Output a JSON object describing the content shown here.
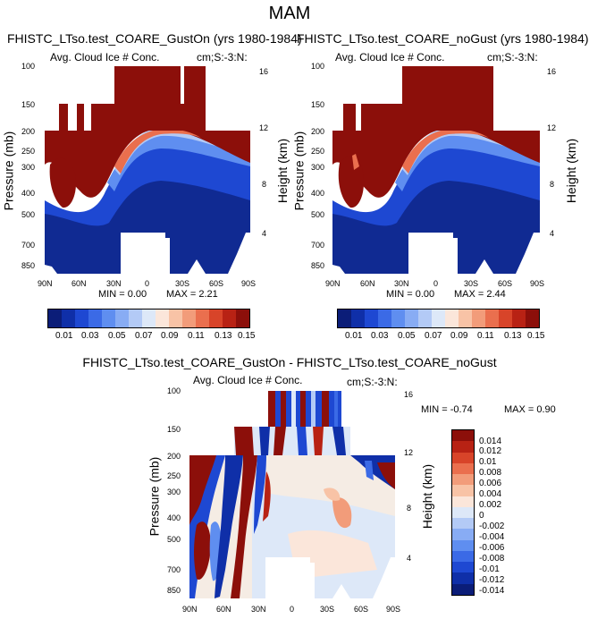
{
  "title": "MAM",
  "colors": {
    "abs_scale": [
      "#0b1d78",
      "#0f2fa8",
      "#1e48d2",
      "#3b6ae6",
      "#5f8ef0",
      "#88acf4",
      "#b3caf6",
      "#dde8f8",
      "#fbe6da",
      "#f8c3a6",
      "#f29c7a",
      "#ea6f4e",
      "#d84429",
      "#b82214",
      "#8c0f0a"
    ],
    "diff_scale": [
      "#0b1d78",
      "#0f2fa8",
      "#1e48d2",
      "#3b6ae6",
      "#5f8ef0",
      "#88acf4",
      "#b3caf6",
      "#dde8f8",
      "#fbe6da",
      "#f8c3a6",
      "#f29c7a",
      "#ea6f4e",
      "#d84429",
      "#b82214",
      "#8c0f0a"
    ]
  },
  "chart_data": [
    {
      "type": "heatmap",
      "title": "FHISTC_LTso.test_COARE_GustOn (yrs 1980-1984)",
      "subtitle_left": "Avg. Cloud Ice # Conc.",
      "subtitle_right": "cm;S:-3:N:",
      "xlabel": "",
      "ylabel": "Pressure (mb)",
      "ylabel_right": "Height (km)",
      "x_ticks": [
        "90N",
        "60N",
        "30N",
        "0",
        "30S",
        "60S",
        "90S"
      ],
      "y_ticks": [
        "100",
        "150",
        "200",
        "250",
        "300",
        "400",
        "500",
        "700",
        "850"
      ],
      "y_ticks_right": [
        "16",
        "12",
        "8",
        "4"
      ],
      "min_label": "MIN =  0.00",
      "max_label": "MAX =  2.21",
      "colorbar_labels": [
        "0.01",
        "0.03",
        "0.05",
        "0.07",
        "0.09",
        "0.11",
        "0.13",
        "0.15"
      ],
      "min": 0.0,
      "max": 2.21
    },
    {
      "type": "heatmap",
      "title": "FHISTC_LTso.test_COARE_noGust (yrs 1980-1984)",
      "subtitle_left": "Avg. Cloud Ice # Conc.",
      "subtitle_right": "cm;S:-3:N:",
      "xlabel": "",
      "ylabel": "Pressure (mb)",
      "ylabel_right": "Height (km)",
      "x_ticks": [
        "90N",
        "60N",
        "30N",
        "0",
        "30S",
        "60S",
        "90S"
      ],
      "y_ticks": [
        "100",
        "150",
        "200",
        "250",
        "300",
        "400",
        "500",
        "700",
        "850"
      ],
      "y_ticks_right": [
        "16",
        "12",
        "8",
        "4"
      ],
      "min_label": "MIN =  0.00",
      "max_label": "MAX =  2.44",
      "colorbar_labels": [
        "0.01",
        "0.03",
        "0.05",
        "0.07",
        "0.09",
        "0.11",
        "0.13",
        "0.15"
      ],
      "min": 0.0,
      "max": 2.44
    },
    {
      "type": "heatmap",
      "title": "FHISTC_LTso.test_COARE_GustOn - FHISTC_LTso.test_COARE_noGust",
      "subtitle_left": "Avg. Cloud Ice # Conc.",
      "subtitle_right": "cm;S:-3:N:",
      "xlabel": "",
      "ylabel": "Pressure (mb)",
      "ylabel_right": "Height (km)",
      "x_ticks": [
        "90N",
        "60N",
        "30N",
        "0",
        "30S",
        "60S",
        "90S"
      ],
      "y_ticks": [
        "100",
        "150",
        "200",
        "250",
        "300",
        "400",
        "500",
        "700",
        "850"
      ],
      "y_ticks_right": [
        "16",
        "12",
        "8",
        "4"
      ],
      "min_label": "MIN = -0.74",
      "max_label": "MAX =  0.90",
      "colorbar_labels": [
        "0.014",
        "0.012",
        "0.01",
        "0.008",
        "0.006",
        "0.004",
        "0.002",
        "0",
        "-0.002",
        "-0.004",
        "-0.006",
        "-0.008",
        "-0.01",
        "-0.012",
        "-0.014"
      ],
      "min": -0.74,
      "max": 0.9
    }
  ]
}
